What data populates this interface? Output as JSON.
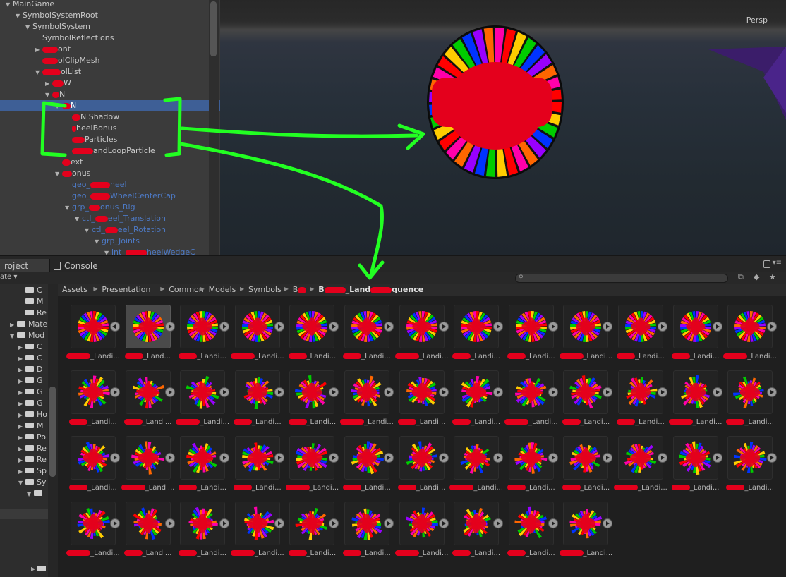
{
  "hierarchy": {
    "rows": [
      {
        "indent": 0,
        "arrow": "▼",
        "text": "MainGame",
        "blot": 0
      },
      {
        "indent": 1,
        "arrow": "▼",
        "text": "SymbolSystemRoot",
        "blot": 0
      },
      {
        "indent": 2,
        "arrow": "▼",
        "text": "SymbolSystem",
        "blot": 0
      },
      {
        "indent": 3,
        "arrow": "",
        "text": "SymbolReflections",
        "blot": 0
      },
      {
        "indent": 3,
        "arrow": "▶",
        "text": "ont",
        "blot": 22
      },
      {
        "indent": 3,
        "arrow": "",
        "text": "olClipMesh",
        "blot": 22
      },
      {
        "indent": 3,
        "arrow": "▼",
        "text": "olList",
        "blot": 26
      },
      {
        "indent": 4,
        "arrow": "▶",
        "text": "W",
        "blot": 16
      },
      {
        "indent": 4,
        "arrow": "▼",
        "text": "N",
        "blot": 10
      },
      {
        "indent": 5,
        "arrow": "▼",
        "text": "N",
        "blot": 12,
        "selected": true
      },
      {
        "indent": 6,
        "arrow": "",
        "text": "N Shadow",
        "blot": 12
      },
      {
        "indent": 6,
        "arrow": "",
        "text": "heelBonus",
        "blot": 6
      },
      {
        "indent": 6,
        "arrow": "",
        "text": "Particles",
        "blot": 18
      },
      {
        "indent": 6,
        "arrow": "",
        "text": "andLoopParticle",
        "blot": 30
      },
      {
        "indent": 5,
        "arrow": "",
        "text": "ext",
        "blot": 12
      },
      {
        "indent": 5,
        "arrow": "▼",
        "text": "onus",
        "blot": 14
      },
      {
        "indent": 6,
        "arrow": "",
        "text": "geo_",
        "text2": "heel",
        "blot": 28,
        "blue": true,
        "mid": true
      },
      {
        "indent": 6,
        "arrow": "",
        "text": "geo_",
        "text2": "WheelCenterCap",
        "blot": 28,
        "blue": true,
        "mid": true
      },
      {
        "indent": 6,
        "arrow": "▼",
        "text": "grp_",
        "text2": "onus_Rig",
        "blot": 16,
        "blue": true,
        "mid": true
      },
      {
        "indent": 7,
        "arrow": "▼",
        "text": "ctl_",
        "text2": "eel_Translation",
        "blot": 18,
        "blue": true,
        "mid": true
      },
      {
        "indent": 8,
        "arrow": "▼",
        "text": "ctl_",
        "text2": "eel_Rotation",
        "blot": 18,
        "blue": true,
        "mid": true
      },
      {
        "indent": 9,
        "arrow": "▼",
        "text": "grp_Joints",
        "blot": 0,
        "blue": true
      },
      {
        "indent": 10,
        "arrow": "▼",
        "text": "jnt_",
        "text2": "heelWedgeC",
        "blot": 30,
        "blue": true,
        "mid": true
      }
    ]
  },
  "scene": {
    "view_label": "Persp"
  },
  "tabs": {
    "project": "roject",
    "console": "Console"
  },
  "project_tree": {
    "sublabel": "ate",
    "rows": [
      {
        "indent": 2,
        "arrow": "",
        "text": "C"
      },
      {
        "indent": 2,
        "arrow": "",
        "text": "M"
      },
      {
        "indent": 2,
        "arrow": "",
        "text": "Re"
      },
      {
        "indent": 1,
        "arrow": "▶",
        "text": "Mate"
      },
      {
        "indent": 1,
        "arrow": "▼",
        "text": "Mod"
      },
      {
        "indent": 2,
        "arrow": "▶",
        "text": "C"
      },
      {
        "indent": 2,
        "arrow": "▶",
        "text": "C"
      },
      {
        "indent": 2,
        "arrow": "▶",
        "text": "D"
      },
      {
        "indent": 2,
        "arrow": "▶",
        "text": "G"
      },
      {
        "indent": 2,
        "arrow": "▶",
        "text": "G"
      },
      {
        "indent": 2,
        "arrow": "▶",
        "text": "G"
      },
      {
        "indent": 2,
        "arrow": "▶",
        "text": "Ho"
      },
      {
        "indent": 2,
        "arrow": "▶",
        "text": "M"
      },
      {
        "indent": 2,
        "arrow": "▶",
        "text": "Po"
      },
      {
        "indent": 2,
        "arrow": "▶",
        "text": "Re"
      },
      {
        "indent": 2,
        "arrow": "▶",
        "text": "Re"
      },
      {
        "indent": 2,
        "arrow": "▶",
        "text": "Sp"
      },
      {
        "indent": 2,
        "arrow": "▼",
        "text": "Sy"
      },
      {
        "indent": 3,
        "arrow": "▼",
        "text": ""
      }
    ]
  },
  "breadcrumb": [
    {
      "text": "Assets"
    },
    {
      "text": "Presentation"
    },
    {
      "text": "Common"
    },
    {
      "text": "Models"
    },
    {
      "text": "Symbols"
    },
    {
      "text": "B",
      "blot": 12
    },
    {
      "text": "B",
      "text2": "_Land",
      "text3": "quence",
      "blot": 30,
      "bold": true
    }
  ],
  "assets": {
    "label_suffixes": [
      "_Landi...",
      "_Land...",
      "_Landi...",
      "_Landi...",
      "_Landi...",
      "_Landi...",
      "_Landi...",
      "_Landi...",
      "_Landi...",
      "_Landi...",
      "_Landi...",
      "_Landi...",
      "_Landi...",
      "_Landi...",
      "_Landi...",
      "_Landi...",
      "_Landi...",
      "_Landi...",
      "_Landi...",
      "_Landi...",
      "_Landi...",
      "_Landi...",
      "_Landi...",
      "_Landi...",
      "_Landi...",
      "_Landi...",
      "_Landi...",
      "_Landi...",
      "_Landi...",
      "_Landi...",
      "_Landi...",
      "_Landi...",
      "_Landi...",
      "_Landi...",
      "_Landi...",
      "_Landi...",
      "_Landi...",
      "_Landi...",
      "_Landi...",
      "_Landi...",
      "_Landi...",
      "_Landi...",
      "_Landi...",
      "_Landi...",
      "_Landi...",
      "_Landi...",
      "_Landi...",
      "_Landi...",
      "_Landi..."
    ],
    "selected_index": 1
  },
  "colors": {
    "wheel": [
      "#ff0000",
      "#ffcc00",
      "#00cc00",
      "#0033ff",
      "#9900ff",
      "#ff6600",
      "#ff00aa"
    ],
    "annotation": "#22ff22",
    "redact": "#e4001c"
  }
}
